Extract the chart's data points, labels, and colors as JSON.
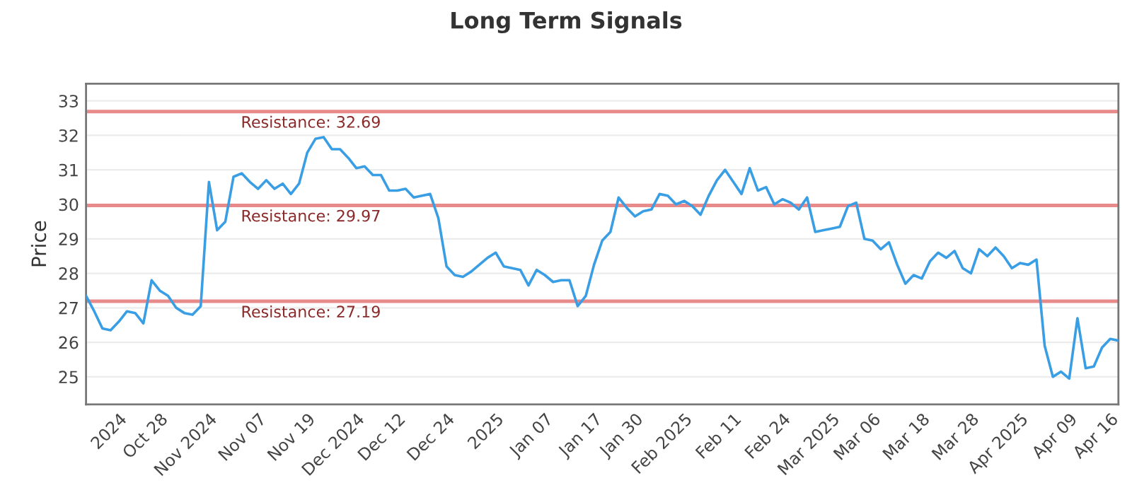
{
  "chart_data": {
    "type": "line",
    "title": "Long Term Signals",
    "ylabel": "Price",
    "categories": [
      null,
      null,
      null,
      null,
      "2024",
      null,
      null,
      null,
      null,
      "Oct 28",
      null,
      null,
      null,
      null,
      null,
      "Nov 2024",
      null,
      null,
      null,
      null,
      null,
      "Nov 07",
      null,
      null,
      null,
      null,
      null,
      "Nov 19",
      null,
      null,
      null,
      null,
      null,
      "Dec 2024",
      null,
      null,
      null,
      null,
      "Dec 12",
      null,
      null,
      null,
      null,
      null,
      "Dec 24",
      null,
      null,
      null,
      null,
      null,
      "2025",
      null,
      null,
      null,
      null,
      null,
      "Jan 07",
      null,
      null,
      null,
      null,
      null,
      "Jan 17",
      null,
      null,
      null,
      null,
      "Jan 30",
      null,
      null,
      null,
      null,
      null,
      "Feb 2025",
      null,
      null,
      null,
      null,
      null,
      "Feb 11",
      null,
      null,
      null,
      null,
      null,
      "Feb 24",
      null,
      null,
      null,
      null,
      null,
      "Mar 2025",
      null,
      null,
      null,
      null,
      "Mar 06",
      null,
      null,
      null,
      null,
      null,
      "Mar 18",
      null,
      null,
      null,
      null,
      null,
      "Mar 28",
      null,
      null,
      null,
      null,
      null,
      "Apr 2025",
      null,
      null,
      null,
      null,
      null,
      "Apr 09",
      null,
      null,
      null,
      null,
      "Apr 16",
      null
    ],
    "series": [
      {
        "color": "#3a9ee4",
        "values": [
          27.35,
          26.9,
          26.4,
          26.35,
          26.6,
          26.9,
          26.85,
          26.55,
          27.8,
          27.5,
          27.35,
          27.0,
          26.85,
          26.8,
          27.05,
          30.65,
          29.25,
          29.5,
          30.8,
          30.9,
          30.65,
          30.45,
          30.7,
          30.45,
          30.6,
          30.3,
          30.6,
          31.5,
          31.9,
          31.95,
          31.6,
          31.6,
          31.35,
          31.05,
          31.1,
          30.85,
          30.85,
          30.4,
          30.4,
          30.45,
          30.2,
          30.25,
          30.3,
          29.6,
          28.2,
          27.95,
          27.9,
          28.05,
          28.25,
          28.45,
          28.6,
          28.2,
          28.15,
          28.1,
          27.65,
          28.1,
          27.95,
          27.75,
          27.8,
          27.8,
          27.05,
          27.35,
          28.25,
          28.95,
          29.2,
          30.2,
          29.9,
          29.65,
          29.8,
          29.85,
          30.3,
          30.25,
          30.0,
          30.1,
          29.95,
          29.7,
          30.25,
          30.7,
          31.0,
          30.65,
          30.3,
          31.05,
          30.4,
          30.5,
          30.0,
          30.15,
          30.05,
          29.85,
          30.2,
          29.2,
          29.25,
          29.3,
          29.35,
          29.95,
          30.05,
          29.0,
          28.95,
          28.7,
          28.9,
          28.25,
          27.7,
          27.95,
          27.85,
          28.35,
          28.6,
          28.45,
          28.65,
          28.15,
          28.0,
          28.7,
          28.5,
          28.75,
          28.5,
          28.15,
          28.3,
          28.25,
          28.4,
          25.9,
          25.0,
          25.15,
          24.95,
          26.7,
          25.25,
          25.3,
          25.85,
          26.1,
          26.05
        ]
      }
    ],
    "ylim": [
      24.2,
      33.5
    ],
    "yticks": [
      25,
      26,
      27,
      28,
      29,
      30,
      31,
      32,
      33
    ],
    "ref_lines": [
      {
        "axis": "y",
        "value": 32.69,
        "label": "Resistance: 32.69",
        "color": "#e88a8a"
      },
      {
        "axis": "y",
        "value": 29.97,
        "label": "Resistance: 29.97",
        "color": "#e88a8a"
      },
      {
        "axis": "y",
        "value": 27.19,
        "label": "Resistance: 27.19",
        "color": "#e88a8a"
      }
    ],
    "grid": "y",
    "marker": "none",
    "line_style": "solid"
  }
}
